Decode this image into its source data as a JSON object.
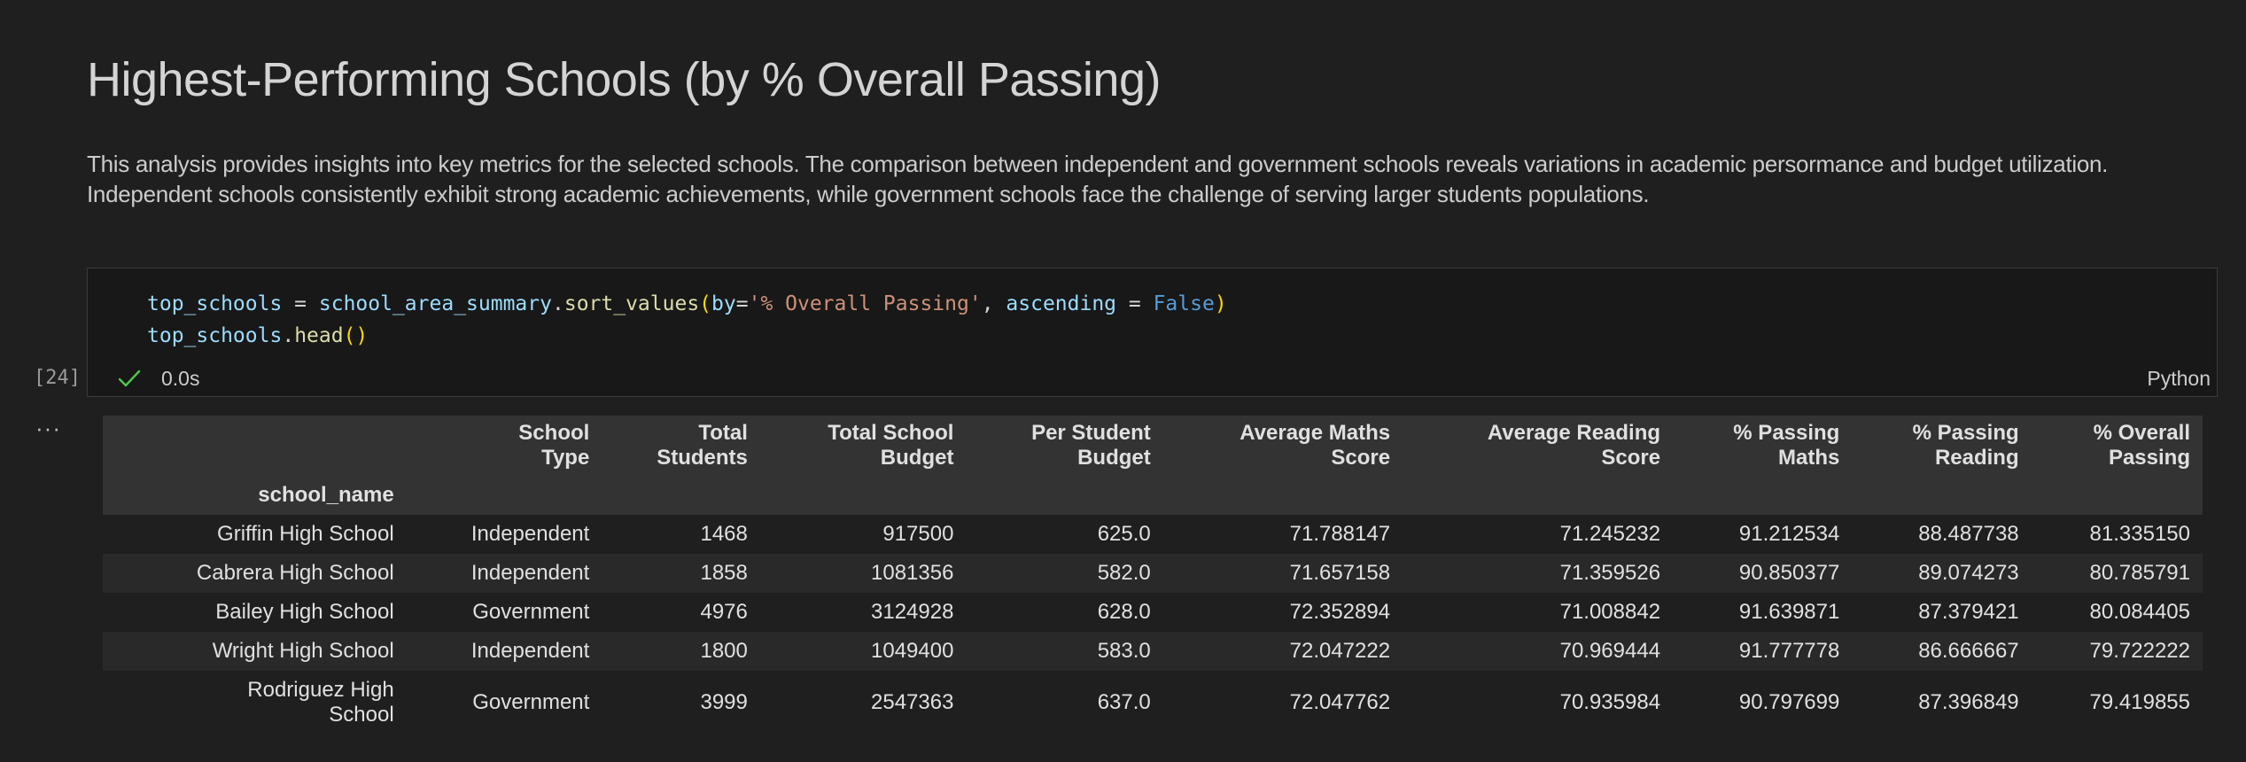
{
  "markdown": {
    "title": "Highest-Performing Schools (by % Overall Passing)",
    "paragraph_line1": "This analysis provides insights into key metrics for the selected schools. The comparison between independent and government schools reveals variations in academic persormance and budget utilization.",
    "paragraph_line2": "Independent schools consistently exhibit strong academic achievements, while government schools face the challenge of serving larger students populations."
  },
  "code_cell": {
    "line1": {
      "var": "top_schools",
      "eq": " = ",
      "obj": "school_area_summary",
      "dot": ".",
      "method": "sort_values",
      "open": "(",
      "kw1": "by",
      "eq2": "=",
      "str": "'% Overall Passing'",
      "comma": ", ",
      "kw2": "ascending",
      "eq3": " = ",
      "bool": "False",
      "close": ")"
    },
    "line2": {
      "var": "top_schools",
      "dot": ".",
      "method": "head",
      "parens": "()"
    },
    "execution_count": "[24]",
    "status_time": "0.0s",
    "language": "Python"
  },
  "colors": {
    "background": "#1f1f1f",
    "code_bg": "#181818",
    "success_check": "#4ec94e"
  },
  "output_table": {
    "columns": [
      [
        "School",
        "Type"
      ],
      [
        "Total",
        "Students"
      ],
      [
        "Total School",
        "Budget"
      ],
      [
        "Per Student",
        "Budget"
      ],
      [
        "Average Maths",
        "Score"
      ],
      [
        "Average Reading",
        "Score"
      ],
      [
        "% Passing",
        "Maths"
      ],
      [
        "% Passing",
        "Reading"
      ],
      [
        "% Overall",
        "Passing"
      ]
    ],
    "index_name": "school_name",
    "rows": [
      {
        "name": "Griffin High School",
        "cells": [
          "Independent",
          "1468",
          "917500",
          "625.0",
          "71.788147",
          "71.245232",
          "91.212534",
          "88.487738",
          "81.335150"
        ]
      },
      {
        "name": "Cabrera High School",
        "cells": [
          "Independent",
          "1858",
          "1081356",
          "582.0",
          "71.657158",
          "71.359526",
          "90.850377",
          "89.074273",
          "80.785791"
        ]
      },
      {
        "name": "Bailey High School",
        "cells": [
          "Government",
          "4976",
          "3124928",
          "628.0",
          "72.352894",
          "71.008842",
          "91.639871",
          "87.379421",
          "80.084405"
        ]
      },
      {
        "name": "Wright High School",
        "cells": [
          "Independent",
          "1800",
          "1049400",
          "583.0",
          "72.047222",
          "70.969444",
          "91.777778",
          "86.666667",
          "79.722222"
        ]
      },
      {
        "name_line1": "Rodriguez High",
        "name_line2": "School",
        "cells": [
          "Government",
          "3999",
          "2547363",
          "637.0",
          "72.047762",
          "70.935984",
          "90.797699",
          "87.396849",
          "79.419855"
        ]
      }
    ]
  }
}
